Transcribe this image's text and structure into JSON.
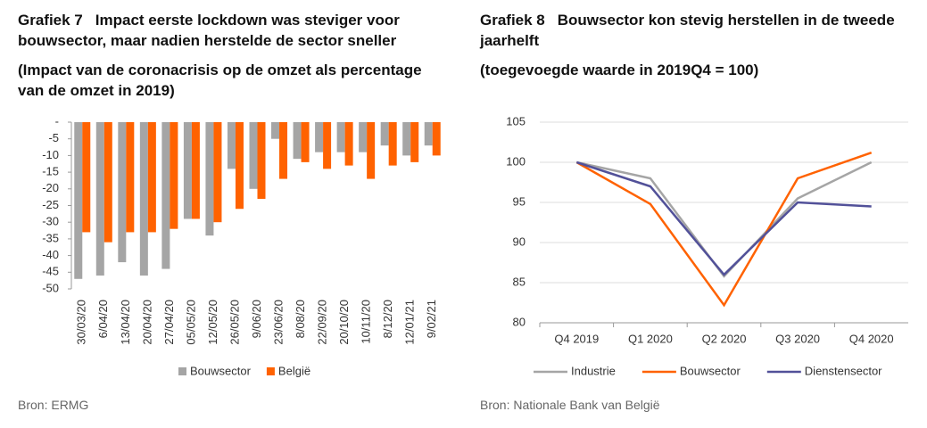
{
  "chart_data": [
    {
      "type": "bar",
      "label": "Grafiek 7",
      "title": "Impact eerste lockdown was steviger voor bouwsector, maar nadien herstelde de sector sneller",
      "subtitle": "(Impact van de coronacrisis op de omzet als percentage van de omzet in 2019)",
      "source": "Bron: ERMG",
      "categories": [
        "30/03/20",
        "6/04/20",
        "13/04/20",
        "20/04/20",
        "27/04/20",
        "05/05/20",
        "12/05/20",
        "26/05/20",
        "9/06/20",
        "23/06/20",
        "8/08/20",
        "22/09/20",
        "20/10/20",
        "10/11/20",
        "8/12/20",
        "12/01/21",
        "9/02/21"
      ],
      "series": [
        {
          "name": "Bouwsector",
          "color": "#a5a5a5",
          "values": [
            -47,
            -46,
            -42,
            -46,
            -44,
            -29,
            -34,
            -14,
            -20,
            -5,
            -11,
            -9,
            -9,
            -9,
            -7,
            -10,
            -7
          ]
        },
        {
          "name": "België",
          "color": "#ff6200",
          "values": [
            -33,
            -36,
            -33,
            -33,
            -32,
            -29,
            -30,
            -26,
            -23,
            -17,
            -12,
            -14,
            -13,
            -17,
            -13,
            -12,
            -10
          ]
        }
      ],
      "ylim": [
        -50,
        0
      ],
      "yticks": [
        {
          "value": 0,
          "label": "-"
        },
        -5,
        -10,
        -15,
        -20,
        -25,
        -30,
        -35,
        -40,
        -45,
        -50
      ],
      "grid": false
    },
    {
      "type": "line",
      "label": "Grafiek 8",
      "title": "Bouwsector kon stevig herstellen in de tweede jaarhelft",
      "subtitle": "(toegevoegde waarde in 2019Q4 = 100)",
      "source": "Bron: Nationale Bank van België",
      "categories": [
        "Q4 2019",
        "Q1 2020",
        "Q2 2020",
        "Q3 2020",
        "Q4 2020"
      ],
      "series": [
        {
          "name": "Industrie",
          "color": "#a5a5a5",
          "values": [
            100,
            98,
            85.8,
            95.5,
            100
          ]
        },
        {
          "name": "Bouwsector",
          "color": "#ff6200",
          "values": [
            100,
            94.8,
            82.2,
            98,
            101.2
          ]
        },
        {
          "name": "Dienstensector",
          "color": "#525199",
          "values": [
            100,
            97,
            86,
            95,
            94.5
          ]
        }
      ],
      "ylim": [
        80,
        105
      ],
      "yticks": [
        80,
        85,
        90,
        95,
        100,
        105
      ],
      "grid": true
    }
  ]
}
